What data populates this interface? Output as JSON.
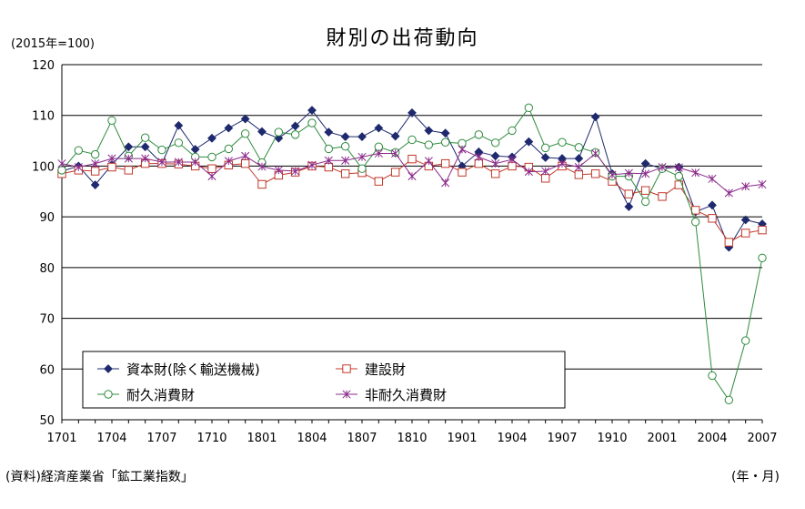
{
  "chart_data": {
    "type": "line",
    "title": "財別の出荷動向",
    "ylabel": "(2015年=100)",
    "xlabel": "(年・月)",
    "source": "(資料)経済産業省「鉱工業指数」",
    "ylim": [
      50,
      120
    ],
    "yticks": [
      50,
      60,
      70,
      80,
      90,
      100,
      110,
      120
    ],
    "xtick_labels": [
      "1701",
      "1704",
      "1707",
      "1710",
      "1801",
      "1804",
      "1807",
      "1810",
      "1901",
      "1904",
      "1907",
      "1910",
      "2001",
      "2004",
      "2007"
    ],
    "grid": true,
    "legend_position": "bottom-left",
    "x": [
      "1701",
      "1702",
      "1703",
      "1704",
      "1705",
      "1706",
      "1707",
      "1708",
      "1709",
      "1710",
      "1711",
      "1712",
      "1801",
      "1802",
      "1803",
      "1804",
      "1805",
      "1806",
      "1807",
      "1808",
      "1809",
      "1810",
      "1811",
      "1812",
      "1901",
      "1902",
      "1903",
      "1904",
      "1905",
      "1906",
      "1907",
      "1908",
      "1909",
      "1910",
      "1911",
      "1912",
      "2001",
      "2002",
      "2003",
      "2004",
      "2005",
      "2006",
      "2007"
    ],
    "series": [
      {
        "name": "資本財(除く輸送機械)",
        "color": "#1f2a6e",
        "marker": "diamond",
        "values": [
          99.0,
          100.0,
          96.3,
          100.3,
          103.8,
          103.8,
          100.5,
          108.0,
          103.3,
          105.5,
          107.5,
          109.3,
          106.8,
          105.5,
          107.9,
          111.0,
          106.7,
          105.8,
          105.8,
          107.5,
          105.9,
          110.5,
          107.0,
          106.5,
          100.0,
          102.8,
          102.0,
          101.8,
          104.8,
          101.7,
          101.5,
          101.5,
          109.7,
          98.5,
          92.0,
          100.5,
          99.5,
          99.8,
          91.0,
          92.3,
          84.0,
          89.4,
          88.6
        ]
      },
      {
        "name": "建設財",
        "color": "#c0392b",
        "marker": "square",
        "values": [
          98.5,
          99.2,
          99.0,
          99.8,
          99.2,
          100.5,
          100.5,
          100.4,
          100.0,
          99.5,
          100.2,
          100.5,
          96.4,
          98.2,
          98.8,
          100.0,
          99.8,
          98.5,
          98.7,
          97.0,
          98.8,
          101.4,
          100.0,
          100.5,
          98.8,
          100.5,
          98.5,
          100.0,
          99.8,
          97.6,
          100.0,
          98.3,
          98.5,
          97.0,
          94.5,
          95.2,
          94.0,
          96.3,
          91.3,
          89.7,
          85.0,
          86.8,
          87.4
        ]
      },
      {
        "name": "耐久消費財",
        "color": "#2e8b3e",
        "marker": "circle",
        "values": [
          99.2,
          103.1,
          102.3,
          109.0,
          102.0,
          105.6,
          103.2,
          104.6,
          101.8,
          101.8,
          103.4,
          106.4,
          100.7,
          106.7,
          106.2,
          108.5,
          103.4,
          103.9,
          99.5,
          103.8,
          102.7,
          105.2,
          104.2,
          104.7,
          104.5,
          106.2,
          104.6,
          107.0,
          111.5,
          103.6,
          104.7,
          103.7,
          102.7,
          98.0,
          98.0,
          93.0,
          99.5,
          98.0,
          89.0,
          58.7,
          53.9,
          65.6,
          81.9
        ]
      },
      {
        "name": "非耐久消費財",
        "color": "#8a2a8a",
        "marker": "x",
        "values": [
          100.5,
          99.8,
          100.5,
          101.5,
          101.5,
          101.5,
          100.8,
          100.8,
          100.8,
          98.0,
          101.0,
          102.0,
          99.9,
          99.2,
          99.0,
          100.2,
          101.1,
          101.1,
          101.8,
          102.5,
          102.5,
          98.0,
          101.0,
          96.7,
          103.3,
          101.8,
          100.5,
          101.3,
          98.9,
          99.0,
          100.5,
          99.8,
          102.5,
          98.3,
          98.6,
          98.5,
          99.8,
          99.7,
          98.7,
          97.5,
          94.7,
          96.0,
          96.4
        ]
      }
    ]
  }
}
